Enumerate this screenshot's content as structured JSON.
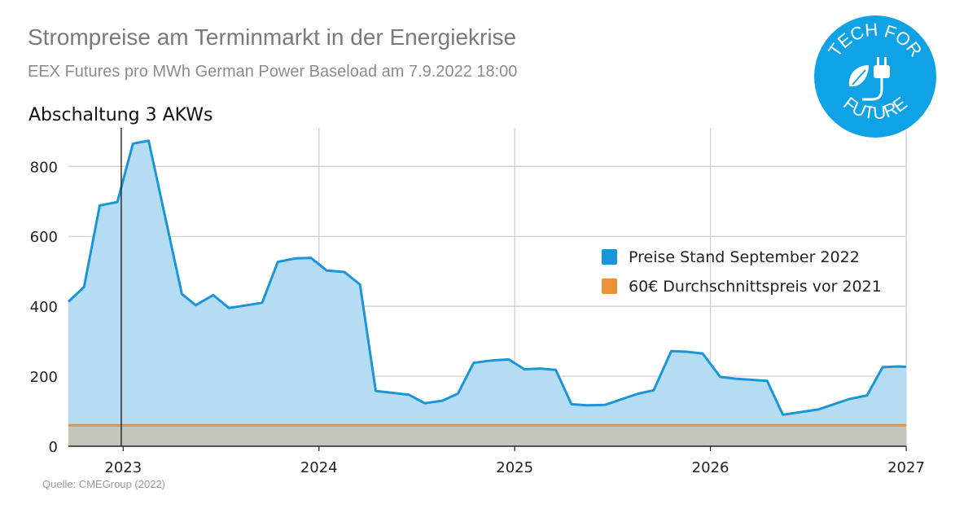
{
  "header": {
    "title": "Strompreise am Terminmarkt in der Energiekrise",
    "subtitle": "EEX Futures pro MWh German Power Baseload am 7.9.2022 18:00"
  },
  "source": "Quelle: CMEGroup (2022)",
  "logo": {
    "text_top": "TECH FOR",
    "text_bottom": "FUTURE",
    "color": "#0fa3e6",
    "icon": "plug-leaf-icon"
  },
  "colors": {
    "series_line": "#1a95d8",
    "series_fill": "#b5dcf3",
    "reference_line": "#ea923b",
    "reference_fill": "#c4c6bc",
    "grid": "#cccccc",
    "axis": "#222222"
  },
  "chart_data": {
    "type": "area",
    "title": "Strompreise am Terminmarkt in der Energiekrise",
    "subtitle": "EEX Futures pro MWh German Power Baseload am 7.9.2022 18:00",
    "xlabel": "",
    "ylabel": "",
    "xlim": [
      2022.72,
      2027.0
    ],
    "ylim": [
      0,
      910
    ],
    "x_ticks": [
      2023,
      2024,
      2025,
      2026,
      2027
    ],
    "y_ticks": [
      0,
      200,
      400,
      600,
      800
    ],
    "grid": true,
    "legend_position": "right",
    "series": [
      {
        "name": "Preise Stand September 2022",
        "x": [
          2022.72,
          2022.8,
          2022.88,
          2022.97,
          2023.05,
          2023.13,
          2023.3,
          2023.37,
          2023.46,
          2023.54,
          2023.71,
          2023.79,
          2023.88,
          2023.96,
          2024.04,
          2024.13,
          2024.21,
          2024.29,
          2024.46,
          2024.54,
          2024.63,
          2024.71,
          2024.79,
          2024.88,
          2024.97,
          2025.05,
          2025.13,
          2025.21,
          2025.29,
          2025.37,
          2025.46,
          2025.63,
          2025.71,
          2025.8,
          2025.88,
          2025.96,
          2026.05,
          2026.13,
          2026.29,
          2026.37,
          2026.55,
          2026.71,
          2026.8,
          2026.88,
          2026.96,
          2027.0
        ],
        "values": [
          413,
          455,
          688,
          698,
          865,
          873,
          435,
          403,
          432,
          395,
          410,
          527,
          537,
          538,
          502,
          498,
          462,
          158,
          147,
          123,
          130,
          150,
          238,
          245,
          248,
          220,
          222,
          218,
          120,
          117,
          118,
          150,
          160,
          272,
          270,
          265,
          198,
          193,
          187,
          90,
          105,
          135,
          145,
          226,
          228,
          227
        ]
      },
      {
        "name": "60€ Durchschnittspreis vor 2021",
        "x": [
          2022.72,
          2027.0
        ],
        "values": [
          60,
          60
        ]
      }
    ],
    "annotations": [
      {
        "x": 2022.99,
        "label": "Abschaltung 3 AKWs"
      }
    ]
  }
}
